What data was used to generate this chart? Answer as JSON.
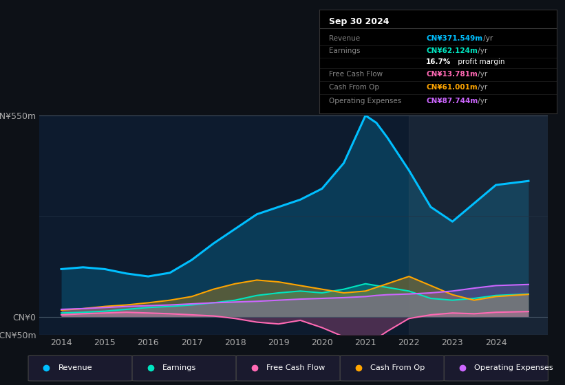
{
  "bg_color": "#0d1117",
  "chart_bg": "#0d1b2e",
  "title": "Sep 30 2024",
  "info_box_rows": [
    {
      "label": "Revenue",
      "value": "CN¥371.549m /yr",
      "color": "#00bfff"
    },
    {
      "label": "Earnings",
      "value": "CN¥62.124m /yr",
      "color": "#00e5c0"
    },
    {
      "label": "",
      "value": "16.7% profit margin",
      "color": "#cccccc"
    },
    {
      "label": "Free Cash Flow",
      "value": "CN¥13.781m /yr",
      "color": "#ff69b4"
    },
    {
      "label": "Cash From Op",
      "value": "CN¥61.001m /yr",
      "color": "#ffa500"
    },
    {
      "label": "Operating Expenses",
      "value": "CN¥87.744m /yr",
      "color": "#cc66ff"
    }
  ],
  "years": [
    2014,
    2014.5,
    2015,
    2015.5,
    2016,
    2016.5,
    2017,
    2017.5,
    2018,
    2018.5,
    2019,
    2019.5,
    2020,
    2020.5,
    2021,
    2021.25,
    2021.5,
    2022,
    2022.5,
    2023,
    2023.5,
    2024,
    2024.75
  ],
  "revenue": [
    130,
    135,
    130,
    118,
    110,
    120,
    155,
    200,
    240,
    280,
    300,
    320,
    350,
    420,
    550,
    530,
    490,
    400,
    300,
    260,
    310,
    360,
    371
  ],
  "earnings": [
    10,
    12,
    15,
    20,
    25,
    28,
    32,
    38,
    45,
    58,
    65,
    70,
    65,
    75,
    90,
    85,
    80,
    70,
    50,
    45,
    50,
    58,
    62
  ],
  "free_cash": [
    5,
    8,
    10,
    12,
    10,
    8,
    5,
    2,
    -5,
    -15,
    -20,
    -10,
    -30,
    -55,
    -70,
    -60,
    -40,
    -5,
    5,
    10,
    8,
    12,
    14
  ],
  "cash_from_op": [
    18,
    22,
    28,
    32,
    38,
    45,
    55,
    75,
    90,
    100,
    95,
    85,
    75,
    65,
    70,
    80,
    90,
    110,
    85,
    60,
    45,
    55,
    61
  ],
  "op_expenses": [
    20,
    22,
    25,
    28,
    30,
    32,
    35,
    38,
    40,
    42,
    45,
    48,
    50,
    52,
    55,
    58,
    60,
    62,
    65,
    70,
    78,
    85,
    88
  ],
  "ylim": [
    -50,
    550
  ],
  "yticks": [
    -50,
    0,
    550
  ],
  "ytick_labels": [
    "-CN¥50m",
    "CN¥0",
    "CN¥550m"
  ],
  "xlim": [
    2013.5,
    2025.2
  ],
  "xticks": [
    2014,
    2015,
    2016,
    2017,
    2018,
    2019,
    2020,
    2021,
    2022,
    2023,
    2024
  ],
  "revenue_color": "#00bfff",
  "earnings_color": "#00e5c0",
  "free_cash_color": "#ff69b4",
  "cash_op_color": "#ffa500",
  "op_exp_color": "#cc66ff",
  "legend": [
    {
      "label": "Revenue",
      "color": "#00bfff"
    },
    {
      "label": "Earnings",
      "color": "#00e5c0"
    },
    {
      "label": "Free Cash Flow",
      "color": "#ff69b4"
    },
    {
      "label": "Cash From Op",
      "color": "#ffa500"
    },
    {
      "label": "Operating Expenses",
      "color": "#cc66ff"
    }
  ]
}
